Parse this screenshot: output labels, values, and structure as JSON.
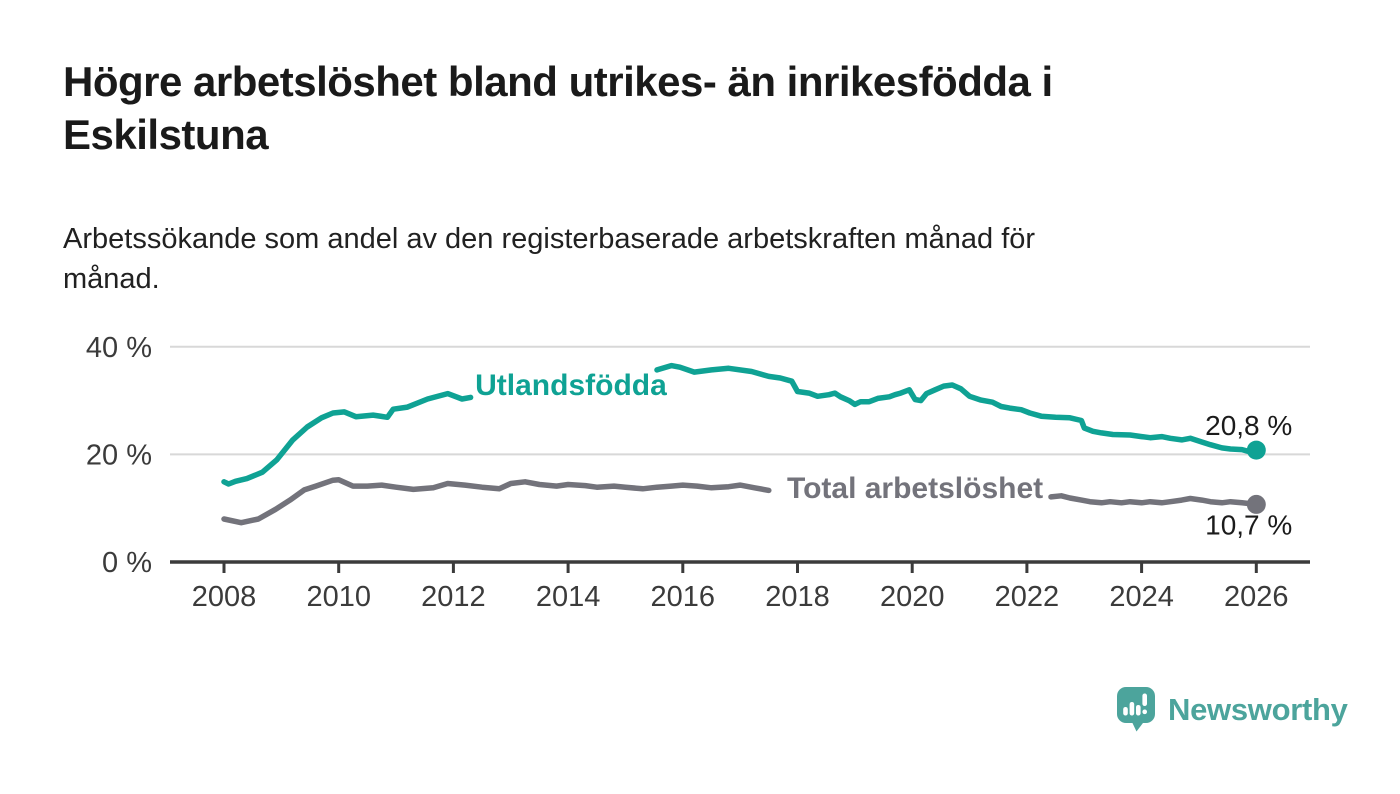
{
  "header": {
    "title_lines": [
      "Högre arbetslöshet bland utrikes- än inrikesfödda i",
      "Eskilstuna"
    ],
    "subtitle_lines": [
      "Arbetssökande som andel av den registerbaserade arbetskraften månad för",
      "månad."
    ]
  },
  "footer": {
    "brand": "Newsworthy",
    "brand_color": "#4CA49C",
    "logo_icon": "chart-speech-bubble-icon"
  },
  "chart_data": {
    "type": "line",
    "title": "Högre arbetslöshet bland utrikes- än inrikesfödda i Eskilstuna",
    "subtitle": "Arbetssökande som andel av den registerbaserade arbetskraften månad för månad.",
    "x_unit": "year",
    "y_unit": "percent",
    "x_range": [
      2007.05,
      2026.95
    ],
    "y_range": [
      0,
      42
    ],
    "grid": "horizontal-only",
    "legend_position": "inline-labels",
    "x_axis": {
      "ticks": [
        {
          "value": 2008,
          "label": "2008"
        },
        {
          "value": 2010,
          "label": "2010"
        },
        {
          "value": 2012,
          "label": "2012"
        },
        {
          "value": 2014,
          "label": "2014"
        },
        {
          "value": 2016,
          "label": "2016"
        },
        {
          "value": 2018,
          "label": "2018"
        },
        {
          "value": 2020,
          "label": "2020"
        },
        {
          "value": 2022,
          "label": "2022"
        },
        {
          "value": 2024,
          "label": "2024"
        },
        {
          "value": 2026,
          "label": "2026"
        }
      ]
    },
    "y_axis": {
      "ticks": [
        {
          "value": 0,
          "label": "0 %"
        },
        {
          "value": 20,
          "label": "20 %"
        },
        {
          "value": 40,
          "label": "40 %"
        }
      ]
    },
    "style": {
      "grid_color": "#d8d8d8",
      "axis_color": "#3b3b3b"
    },
    "series": [
      {
        "name": "Utlandsfödda",
        "color": "#0FA294",
        "end_value": 20.8,
        "end_label": "20,8 %",
        "end_label_position": "above",
        "label_pos": {
          "x": 2014.05,
          "y": 32.9
        },
        "segments": [
          [
            [
              2008.0,
              14.9
            ],
            [
              2008.08,
              14.5
            ],
            [
              2008.2,
              15.0
            ],
            [
              2008.4,
              15.5
            ],
            [
              2008.67,
              16.7
            ],
            [
              2008.92,
              19.0
            ],
            [
              2009.2,
              22.7
            ],
            [
              2009.45,
              25.1
            ],
            [
              2009.7,
              26.8
            ],
            [
              2009.9,
              27.7
            ],
            [
              2010.1,
              27.9
            ],
            [
              2010.3,
              27.0
            ],
            [
              2010.6,
              27.3
            ],
            [
              2010.85,
              26.9
            ],
            [
              2010.95,
              28.4
            ],
            [
              2011.2,
              28.8
            ],
            [
              2011.55,
              30.3
            ],
            [
              2011.9,
              31.3
            ],
            [
              2012.15,
              30.3
            ],
            [
              2012.3,
              30.6
            ]
          ],
          [
            [
              2015.55,
              35.7
            ],
            [
              2015.8,
              36.5
            ],
            [
              2015.95,
              36.2
            ],
            [
              2016.2,
              35.3
            ],
            [
              2016.5,
              35.7
            ],
            [
              2016.8,
              36.0
            ],
            [
              2017.2,
              35.4
            ],
            [
              2017.5,
              34.5
            ],
            [
              2017.7,
              34.2
            ],
            [
              2017.9,
              33.6
            ],
            [
              2018.0,
              31.7
            ],
            [
              2018.2,
              31.4
            ],
            [
              2018.35,
              30.8
            ],
            [
              2018.55,
              31.1
            ],
            [
              2018.65,
              31.4
            ],
            [
              2018.75,
              30.7
            ],
            [
              2018.9,
              30.0
            ],
            [
              2019.0,
              29.3
            ],
            [
              2019.1,
              29.8
            ],
            [
              2019.25,
              29.8
            ],
            [
              2019.4,
              30.4
            ],
            [
              2019.6,
              30.7
            ],
            [
              2019.7,
              31.1
            ],
            [
              2019.8,
              31.4
            ],
            [
              2019.95,
              32.0
            ],
            [
              2020.05,
              30.2
            ],
            [
              2020.15,
              30.0
            ],
            [
              2020.25,
              31.3
            ],
            [
              2020.4,
              32.0
            ],
            [
              2020.55,
              32.7
            ],
            [
              2020.7,
              32.9
            ],
            [
              2020.85,
              32.2
            ],
            [
              2021.0,
              30.8
            ],
            [
              2021.2,
              30.1
            ],
            [
              2021.4,
              29.7
            ],
            [
              2021.55,
              28.9
            ],
            [
              2021.7,
              28.6
            ],
            [
              2021.9,
              28.3
            ],
            [
              2022.05,
              27.7
            ],
            [
              2022.25,
              27.1
            ],
            [
              2022.5,
              26.9
            ],
            [
              2022.75,
              26.8
            ],
            [
              2022.95,
              26.3
            ],
            [
              2023.0,
              24.9
            ],
            [
              2023.15,
              24.3
            ],
            [
              2023.3,
              24.0
            ],
            [
              2023.5,
              23.7
            ],
            [
              2023.8,
              23.6
            ],
            [
              2024.0,
              23.3
            ],
            [
              2024.15,
              23.1
            ],
            [
              2024.35,
              23.3
            ],
            [
              2024.5,
              23.0
            ],
            [
              2024.7,
              22.7
            ],
            [
              2024.85,
              23.0
            ],
            [
              2025.05,
              22.3
            ],
            [
              2025.2,
              21.8
            ],
            [
              2025.4,
              21.2
            ],
            [
              2025.55,
              21.0
            ],
            [
              2025.75,
              20.9
            ],
            [
              2025.88,
              20.5
            ],
            [
              2026.0,
              20.8
            ]
          ]
        ]
      },
      {
        "name": "Total arbetslöshet",
        "color": "#73737B",
        "end_value": 10.7,
        "end_label": "10,7 %",
        "end_label_position": "below",
        "label_pos": {
          "x": 2020.05,
          "y": 13.8
        },
        "segments": [
          [
            [
              2008.0,
              8.0
            ],
            [
              2008.3,
              7.3
            ],
            [
              2008.6,
              8.0
            ],
            [
              2008.9,
              9.8
            ],
            [
              2009.15,
              11.5
            ],
            [
              2009.4,
              13.4
            ],
            [
              2009.6,
              14.1
            ],
            [
              2009.9,
              15.2
            ],
            [
              2010.0,
              15.3
            ],
            [
              2010.25,
              14.1
            ],
            [
              2010.5,
              14.1
            ],
            [
              2010.75,
              14.3
            ],
            [
              2011.0,
              13.9
            ],
            [
              2011.3,
              13.5
            ],
            [
              2011.65,
              13.8
            ],
            [
              2011.9,
              14.6
            ],
            [
              2012.2,
              14.3
            ],
            [
              2012.5,
              13.9
            ],
            [
              2012.8,
              13.6
            ],
            [
              2013.0,
              14.6
            ],
            [
              2013.25,
              14.9
            ],
            [
              2013.5,
              14.4
            ],
            [
              2013.8,
              14.1
            ],
            [
              2014.0,
              14.4
            ],
            [
              2014.3,
              14.2
            ],
            [
              2014.5,
              13.9
            ],
            [
              2014.8,
              14.1
            ],
            [
              2015.0,
              13.9
            ],
            [
              2015.3,
              13.6
            ],
            [
              2015.55,
              13.9
            ],
            [
              2015.8,
              14.1
            ],
            [
              2016.0,
              14.3
            ],
            [
              2016.25,
              14.1
            ],
            [
              2016.5,
              13.8
            ],
            [
              2016.8,
              14.0
            ],
            [
              2017.0,
              14.3
            ],
            [
              2017.25,
              13.8
            ],
            [
              2017.5,
              13.3
            ]
          ],
          [
            [
              2022.42,
              12.1
            ],
            [
              2022.6,
              12.3
            ],
            [
              2022.75,
              11.9
            ],
            [
              2022.95,
              11.5
            ],
            [
              2023.1,
              11.2
            ],
            [
              2023.3,
              11.0
            ],
            [
              2023.45,
              11.2
            ],
            [
              2023.65,
              11.0
            ],
            [
              2023.8,
              11.2
            ],
            [
              2024.0,
              11.0
            ],
            [
              2024.15,
              11.2
            ],
            [
              2024.35,
              11.0
            ],
            [
              2024.5,
              11.2
            ],
            [
              2024.7,
              11.5
            ],
            [
              2024.85,
              11.8
            ],
            [
              2025.05,
              11.5
            ],
            [
              2025.2,
              11.2
            ],
            [
              2025.4,
              11.0
            ],
            [
              2025.55,
              11.2
            ],
            [
              2025.75,
              11.0
            ],
            [
              2026.0,
              10.7
            ]
          ]
        ]
      }
    ]
  }
}
